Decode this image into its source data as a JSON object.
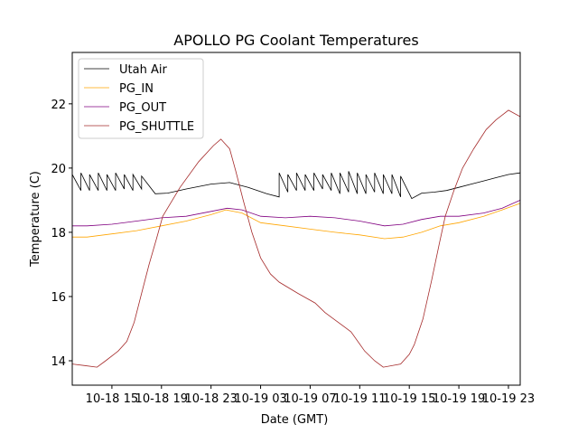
{
  "chart_data": {
    "type": "line",
    "title": "APOLLO PG Coolant Temperatures",
    "xlabel": "Date (GMT)",
    "ylabel": "Temperature (C)",
    "x_units": "hours since 10-18 00:00",
    "xlim": [
      11.8,
      47.95
    ],
    "ylim": [
      13.24,
      23.6
    ],
    "xticks": [
      15,
      19,
      23,
      27,
      31,
      35,
      39,
      43,
      47
    ],
    "xtick_labels": [
      "10-18 15",
      "10-18 19",
      "10-18 23",
      "10-19 03",
      "10-19 07",
      "10-19 11",
      "10-19 15",
      "10-19 19",
      "10-19 23"
    ],
    "yticks": [
      14,
      16,
      18,
      20,
      22
    ],
    "ytick_labels": [
      "14",
      "16",
      "18",
      "20",
      "22"
    ],
    "grid": false,
    "legend_position": "top-left",
    "series": [
      {
        "name": "Utah Air",
        "color": "#000000",
        "points": [
          [
            11.8,
            19.8
          ],
          [
            12.5,
            19.3
          ],
          [
            12.5,
            19.85
          ],
          [
            13.2,
            19.3
          ],
          [
            13.2,
            19.8
          ],
          [
            13.9,
            19.3
          ],
          [
            13.9,
            19.85
          ],
          [
            14.6,
            19.3
          ],
          [
            14.6,
            19.8
          ],
          [
            15.3,
            19.3
          ],
          [
            15.3,
            19.85
          ],
          [
            16.0,
            19.35
          ],
          [
            16.0,
            19.8
          ],
          [
            16.7,
            19.3
          ],
          [
            16.7,
            19.8
          ],
          [
            17.4,
            19.35
          ],
          [
            17.4,
            19.75
          ],
          [
            18.5,
            19.2
          ],
          [
            19.5,
            19.22
          ],
          [
            21,
            19.35
          ],
          [
            23,
            19.5
          ],
          [
            24.5,
            19.55
          ],
          [
            26,
            19.4
          ],
          [
            27.5,
            19.2
          ],
          [
            28.5,
            19.1
          ],
          [
            28.5,
            19.85
          ],
          [
            29.2,
            19.25
          ],
          [
            29.2,
            19.8
          ],
          [
            29.9,
            19.3
          ],
          [
            29.9,
            19.85
          ],
          [
            30.6,
            19.3
          ],
          [
            30.6,
            19.8
          ],
          [
            31.3,
            19.3
          ],
          [
            31.3,
            19.85
          ],
          [
            32.0,
            19.35
          ],
          [
            32.0,
            19.8
          ],
          [
            32.7,
            19.3
          ],
          [
            32.7,
            19.85
          ],
          [
            33.4,
            19.2
          ],
          [
            33.4,
            19.85
          ],
          [
            34.1,
            19.25
          ],
          [
            34.1,
            19.9
          ],
          [
            34.8,
            19.2
          ],
          [
            34.8,
            19.85
          ],
          [
            35.5,
            19.2
          ],
          [
            35.5,
            19.8
          ],
          [
            36.2,
            19.25
          ],
          [
            36.2,
            19.85
          ],
          [
            36.9,
            19.2
          ],
          [
            36.9,
            19.8
          ],
          [
            37.6,
            19.2
          ],
          [
            37.6,
            19.8
          ],
          [
            38.3,
            19.1
          ],
          [
            38.3,
            19.75
          ],
          [
            39.2,
            19.05
          ],
          [
            40,
            19.22
          ],
          [
            41,
            19.25
          ],
          [
            42,
            19.3
          ],
          [
            43,
            19.4
          ],
          [
            44,
            19.5
          ],
          [
            45,
            19.6
          ],
          [
            46,
            19.7
          ],
          [
            47,
            19.8
          ],
          [
            47.95,
            19.85
          ]
        ]
      },
      {
        "name": "PG_IN",
        "color": "#ffa500",
        "points": [
          [
            11.8,
            17.85
          ],
          [
            13,
            17.85
          ],
          [
            15,
            17.95
          ],
          [
            17,
            18.05
          ],
          [
            19,
            18.2
          ],
          [
            21,
            18.35
          ],
          [
            23,
            18.55
          ],
          [
            24.2,
            18.7
          ],
          [
            25.5,
            18.6
          ],
          [
            27,
            18.3
          ],
          [
            29,
            18.2
          ],
          [
            31,
            18.1
          ],
          [
            33,
            18.0
          ],
          [
            35,
            17.92
          ],
          [
            37,
            17.8
          ],
          [
            38.5,
            17.85
          ],
          [
            40,
            18.0
          ],
          [
            41.5,
            18.2
          ],
          [
            43,
            18.3
          ],
          [
            45,
            18.5
          ],
          [
            46.5,
            18.7
          ],
          [
            47.95,
            18.9
          ]
        ]
      },
      {
        "name": "PG_OUT",
        "color": "#800080",
        "points": [
          [
            11.8,
            18.2
          ],
          [
            13,
            18.2
          ],
          [
            15,
            18.25
          ],
          [
            17,
            18.35
          ],
          [
            19,
            18.45
          ],
          [
            21,
            18.5
          ],
          [
            23,
            18.65
          ],
          [
            24.3,
            18.75
          ],
          [
            25.5,
            18.7
          ],
          [
            27,
            18.5
          ],
          [
            29,
            18.45
          ],
          [
            31,
            18.5
          ],
          [
            33,
            18.45
          ],
          [
            35,
            18.35
          ],
          [
            37,
            18.2
          ],
          [
            38.5,
            18.25
          ],
          [
            40,
            18.4
          ],
          [
            41.5,
            18.5
          ],
          [
            43,
            18.5
          ],
          [
            45,
            18.6
          ],
          [
            46.5,
            18.75
          ],
          [
            47.95,
            19.0
          ]
        ]
      },
      {
        "name": "PG_SHUTTLE",
        "color": "#a52a2a",
        "points": [
          [
            11.8,
            13.9
          ],
          [
            12.8,
            13.85
          ],
          [
            13.8,
            13.8
          ],
          [
            14.5,
            14.0
          ],
          [
            15.5,
            14.3
          ],
          [
            16.2,
            14.6
          ],
          [
            16.8,
            15.2
          ],
          [
            17.4,
            16.1
          ],
          [
            18.0,
            17.0
          ],
          [
            18.6,
            17.8
          ],
          [
            19.1,
            18.5
          ],
          [
            20.5,
            19.4
          ],
          [
            22,
            20.2
          ],
          [
            23.2,
            20.7
          ],
          [
            23.8,
            20.9
          ],
          [
            24.5,
            20.6
          ],
          [
            25,
            19.9
          ],
          [
            25.6,
            19.0
          ],
          [
            26.3,
            18.0
          ],
          [
            27,
            17.2
          ],
          [
            27.8,
            16.7
          ],
          [
            28.5,
            16.45
          ],
          [
            30,
            16.1
          ],
          [
            31.4,
            15.8
          ],
          [
            32.2,
            15.5
          ],
          [
            32.9,
            15.3
          ],
          [
            34.3,
            14.9
          ],
          [
            35.4,
            14.3
          ],
          [
            36.2,
            14.0
          ],
          [
            36.9,
            13.8
          ],
          [
            38.3,
            13.9
          ],
          [
            39.0,
            14.2
          ],
          [
            39.4,
            14.5
          ],
          [
            40.1,
            15.3
          ],
          [
            40.8,
            16.5
          ],
          [
            41.4,
            17.6
          ],
          [
            41.9,
            18.5
          ],
          [
            42.6,
            19.3
          ],
          [
            43.3,
            20.0
          ],
          [
            44.2,
            20.6
          ],
          [
            45.2,
            21.2
          ],
          [
            46,
            21.5
          ],
          [
            47,
            21.8
          ],
          [
            47.95,
            21.6
          ]
        ]
      }
    ]
  }
}
